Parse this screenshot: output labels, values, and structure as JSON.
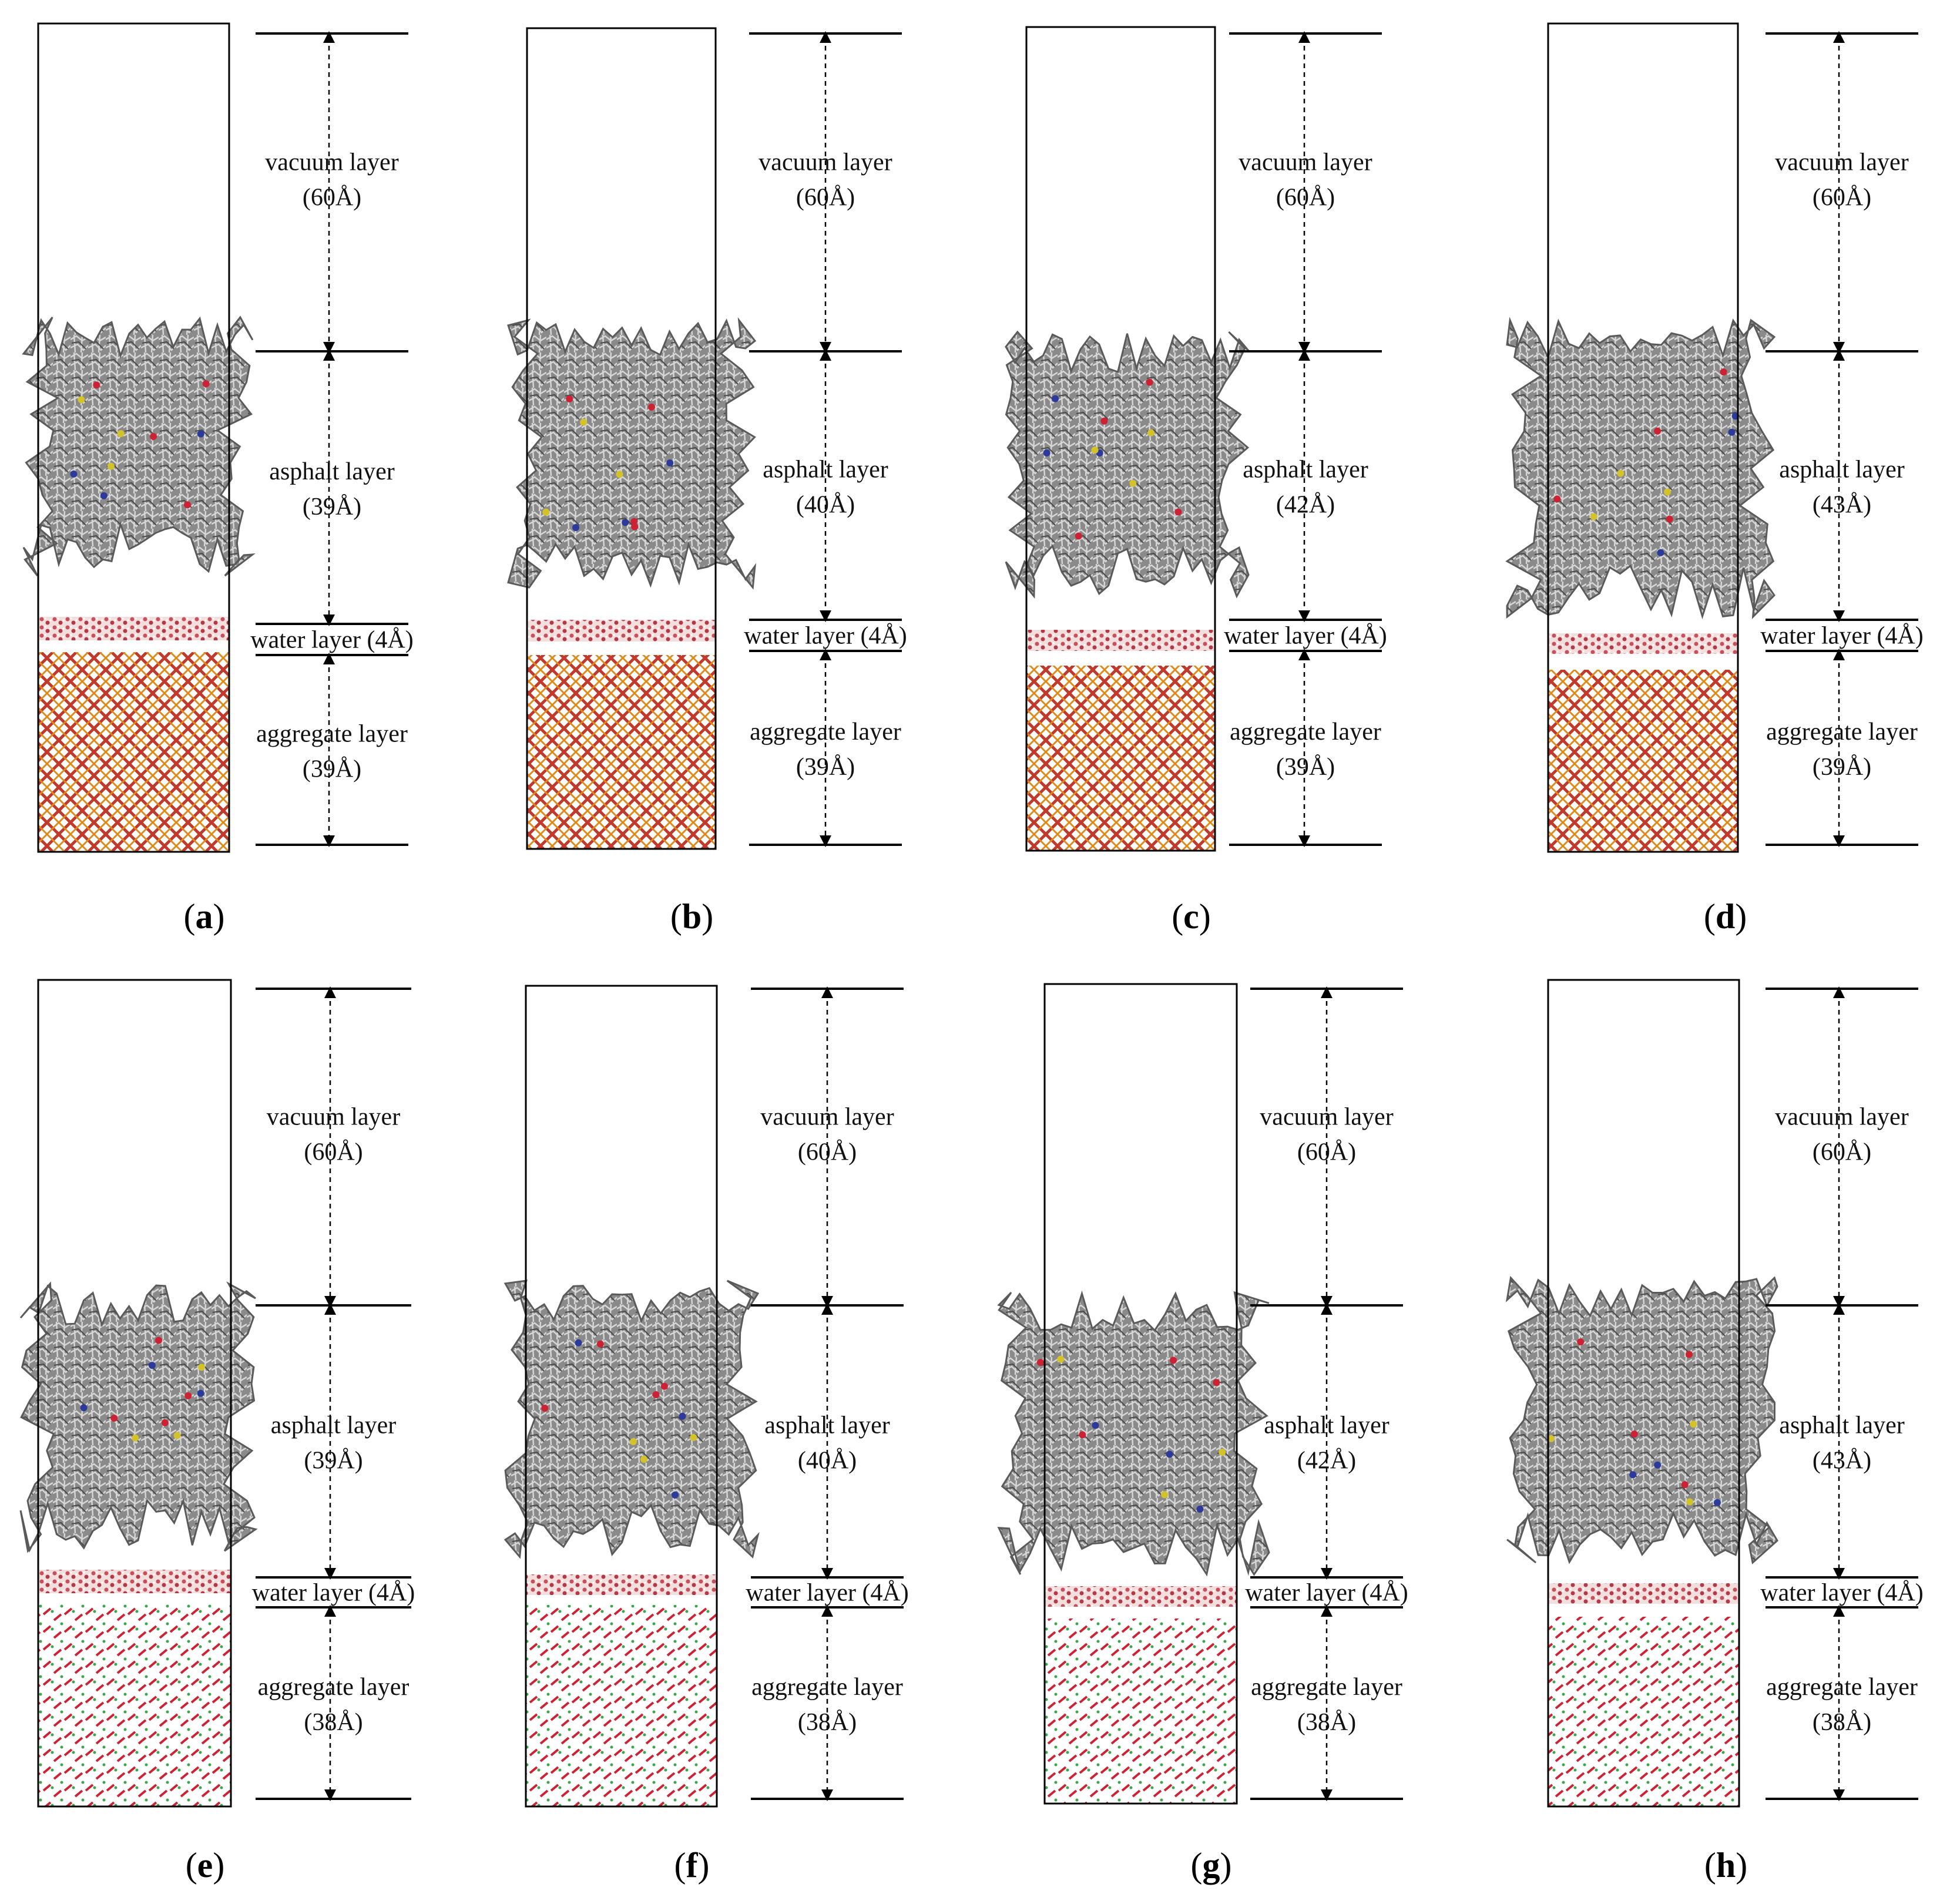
{
  "panels": [
    {
      "id": "a",
      "caption": "a",
      "layers": {
        "vacuum": {
          "name": "vacuum layer",
          "thickness": "(60Å)"
        },
        "asphalt": {
          "name": "asphalt layer",
          "thickness": "(39Å)"
        },
        "water": {
          "name": "water layer",
          "thickness": "(4Å)"
        },
        "aggregate": {
          "name": "aggregate layer",
          "thickness": "(39Å)"
        }
      },
      "substrate": "cross"
    },
    {
      "id": "b",
      "caption": "b",
      "layers": {
        "vacuum": {
          "name": "vacuum layer",
          "thickness": "(60Å)"
        },
        "asphalt": {
          "name": "asphalt layer",
          "thickness": "(40Å)"
        },
        "water": {
          "name": "water layer",
          "thickness": "(4Å)"
        },
        "aggregate": {
          "name": "aggregate layer",
          "thickness": "(39Å)"
        }
      },
      "substrate": "cross"
    },
    {
      "id": "c",
      "caption": "c",
      "layers": {
        "vacuum": {
          "name": "vacuum layer",
          "thickness": "(60Å)"
        },
        "asphalt": {
          "name": "asphalt layer",
          "thickness": "(42Å)"
        },
        "water": {
          "name": "water layer",
          "thickness": "(4Å)"
        },
        "aggregate": {
          "name": "aggregate layer",
          "thickness": "(39Å)"
        }
      },
      "substrate": "cross"
    },
    {
      "id": "d",
      "caption": "d",
      "layers": {
        "vacuum": {
          "name": "vacuum layer",
          "thickness": "(60Å)"
        },
        "asphalt": {
          "name": "asphalt layer",
          "thickness": "(43Å)"
        },
        "water": {
          "name": "water layer",
          "thickness": "(4Å)"
        },
        "aggregate": {
          "name": "aggregate layer",
          "thickness": "(39Å)"
        }
      },
      "substrate": "cross"
    },
    {
      "id": "e",
      "caption": "e",
      "layers": {
        "vacuum": {
          "name": "vacuum layer",
          "thickness": "(60Å)"
        },
        "asphalt": {
          "name": "asphalt layer",
          "thickness": "(39Å)"
        },
        "water": {
          "name": "water layer",
          "thickness": "(4Å)"
        },
        "aggregate": {
          "name": "aggregate layer",
          "thickness": "(38Å)"
        }
      },
      "substrate": "dash"
    },
    {
      "id": "f",
      "caption": "f",
      "layers": {
        "vacuum": {
          "name": "vacuum layer",
          "thickness": "(60Å)"
        },
        "asphalt": {
          "name": "asphalt layer",
          "thickness": "(40Å)"
        },
        "water": {
          "name": "water layer",
          "thickness": "(4Å)"
        },
        "aggregate": {
          "name": "aggregate layer",
          "thickness": "(38Å)"
        }
      },
      "substrate": "dash"
    },
    {
      "id": "g",
      "caption": "g",
      "layers": {
        "vacuum": {
          "name": "vacuum layer",
          "thickness": "(60Å)"
        },
        "asphalt": {
          "name": "asphalt layer",
          "thickness": "(42Å)"
        },
        "water": {
          "name": "water layer",
          "thickness": "(4Å)"
        },
        "aggregate": {
          "name": "aggregate layer",
          "thickness": "(38Å)"
        }
      },
      "substrate": "dash"
    },
    {
      "id": "h",
      "caption": "h",
      "layers": {
        "vacuum": {
          "name": "vacuum layer",
          "thickness": "(60Å)"
        },
        "asphalt": {
          "name": "asphalt layer",
          "thickness": "(43Å)"
        },
        "water": {
          "name": "water layer",
          "thickness": "(4Å)"
        },
        "aggregate": {
          "name": "aggregate layer",
          "thickness": "(38Å)"
        }
      },
      "substrate": "dash"
    }
  ],
  "colors": {
    "asphalt": "#6e6e6e",
    "asphalt_light": "#cfcfcf",
    "water": "#c8505a",
    "aggregate_cross_a": "#c0392b",
    "aggregate_cross_b": "#e08a1e",
    "aggregate_dash_red": "#cc2233",
    "aggregate_dash_green": "#3aa84a"
  }
}
